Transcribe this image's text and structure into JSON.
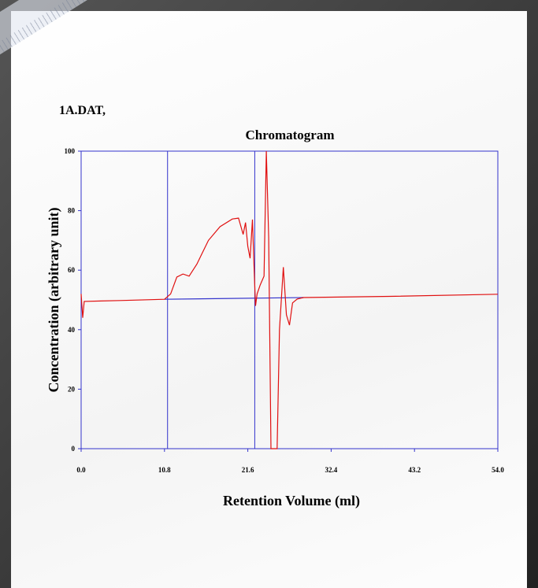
{
  "file_label": "1A.DAT,",
  "chart_data": {
    "type": "line",
    "title": "Chromatogram",
    "xlabel": "Retention Volume (ml)",
    "ylabel": "Concentration (arbitrary unit)",
    "xlim": [
      0,
      54
    ],
    "ylim": [
      0,
      100
    ],
    "xticks": [
      {
        "value": 0,
        "label": "0.0"
      },
      10.8,
      21.6,
      32.4,
      43.2,
      {
        "value": 54,
        "label": "54.0"
      }
    ],
    "yticks": [
      0,
      20,
      40,
      60,
      80,
      100
    ],
    "vlines": [
      11.2,
      22.5
    ],
    "vline_color": "#3333cc",
    "series": [
      {
        "color": "#e01010",
        "x": [
          0,
          0.2,
          0.4,
          5,
          10.8,
          11.6,
          12.4,
          13.2,
          14,
          15,
          16.5,
          18,
          19.6,
          20.4,
          21.0,
          21.3,
          21.6,
          21.9,
          22.2,
          22.4,
          22.6,
          22.8,
          23.2,
          23.7,
          24.0,
          24.3,
          24.6,
          25.4,
          25.7,
          26.2,
          26.6,
          27.0,
          27.4,
          28.0,
          28.8,
          40,
          54
        ],
        "values": [
          52,
          44,
          49.5,
          49.8,
          50.2,
          52,
          57.7,
          58.7,
          58,
          62,
          70,
          74.6,
          77.2,
          77.5,
          72,
          76,
          68,
          64,
          77,
          62,
          48,
          52,
          55,
          58,
          100,
          71,
          0,
          0,
          40,
          61,
          45,
          41.5,
          49,
          50.3,
          50.8,
          51.2,
          51.9
        ]
      },
      {
        "color": "#3333cc",
        "x": [
          10.8,
          28.8
        ],
        "values": [
          50.2,
          50.8
        ]
      }
    ]
  }
}
